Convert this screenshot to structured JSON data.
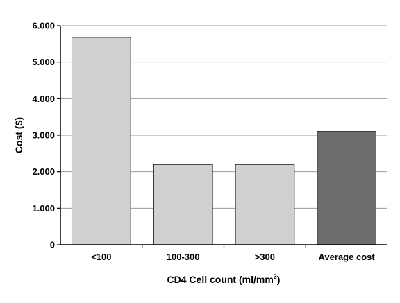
{
  "chart_data": {
    "type": "bar",
    "title": "",
    "xlabel": "CD4 Cell count (ml/mm",
    "xlabel_superscript": "3",
    "xlabel_suffix": ")",
    "ylabel": "Cost ($)",
    "ylim": [
      0,
      6000
    ],
    "yticks": [
      0,
      1000,
      2000,
      3000,
      4000,
      5000,
      6000
    ],
    "ytick_labels": [
      "0",
      "1.000",
      "2.000",
      "3.000",
      "4.000",
      "5.000",
      "6.000"
    ],
    "grid": true,
    "categories": [
      "<100",
      "100-300",
      ">300",
      "Average cost"
    ],
    "values": [
      5680,
      2200,
      2200,
      3100
    ],
    "bar_colors": [
      "#d0d0d0",
      "#d0d0d0",
      "#d0d0d0",
      "#6d6d6d"
    ]
  }
}
